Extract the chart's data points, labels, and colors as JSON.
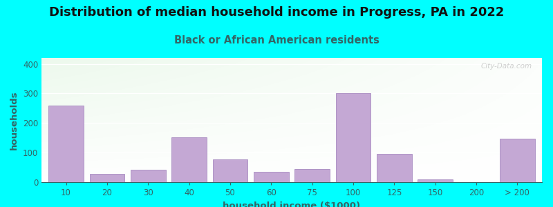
{
  "title": "Distribution of median household income in Progress, PA in 2022",
  "subtitle": "Black or African American residents",
  "xlabel": "household income ($1000)",
  "ylabel": "households",
  "background_color": "#00FFFF",
  "bar_color": "#C4A8D4",
  "bar_edge_color": "#9B7BB8",
  "categories": [
    "10",
    "20",
    "30",
    "40",
    "50",
    "60",
    "75",
    "100",
    "125",
    "150",
    "200",
    "> 200"
  ],
  "values": [
    258,
    28,
    42,
    152,
    78,
    35,
    45,
    302,
    96,
    10,
    0,
    148
  ],
  "ylim": [
    0,
    420
  ],
  "yticks": [
    0,
    100,
    200,
    300,
    400
  ],
  "title_fontsize": 13,
  "subtitle_fontsize": 10.5,
  "axis_label_fontsize": 9.5,
  "tick_fontsize": 8.5,
  "tick_color": "#336666",
  "label_color": "#336666",
  "watermark": "City-Data.com"
}
